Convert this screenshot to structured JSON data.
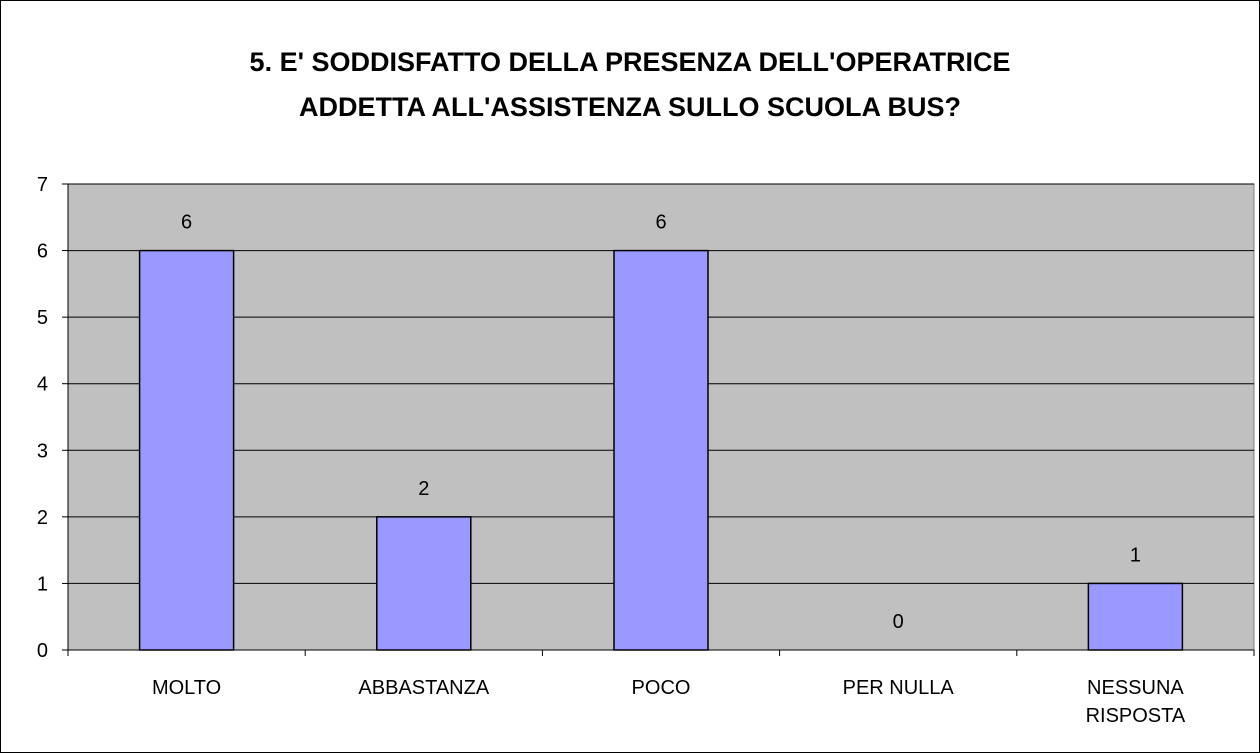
{
  "chart_data": {
    "type": "bar",
    "title_lines": [
      "5. E' SODDISFATTO DELLA PRESENZA DELL'OPERATRICE",
      "ADDETTA ALL'ASSISTENZA SULLO SCUOLA BUS?"
    ],
    "categories": [
      [
        "MOLTO"
      ],
      [
        "ABBASTANZA"
      ],
      [
        "POCO"
      ],
      [
        "PER NULLA"
      ],
      [
        "NESSUNA",
        "RISPOSTA"
      ]
    ],
    "values": [
      6,
      2,
      6,
      0,
      1
    ],
    "data_labels": [
      "6",
      "2",
      "6",
      "0",
      "1"
    ],
    "y_ticks": [
      "0",
      "1",
      "2",
      "3",
      "4",
      "5",
      "6",
      "7"
    ],
    "ylim": [
      0,
      7
    ],
    "grid": true,
    "legend": "none",
    "colors": {
      "bar_fill": "#9999ff",
      "plot_background": "#c0c0c0",
      "gridline": "#000000"
    }
  }
}
